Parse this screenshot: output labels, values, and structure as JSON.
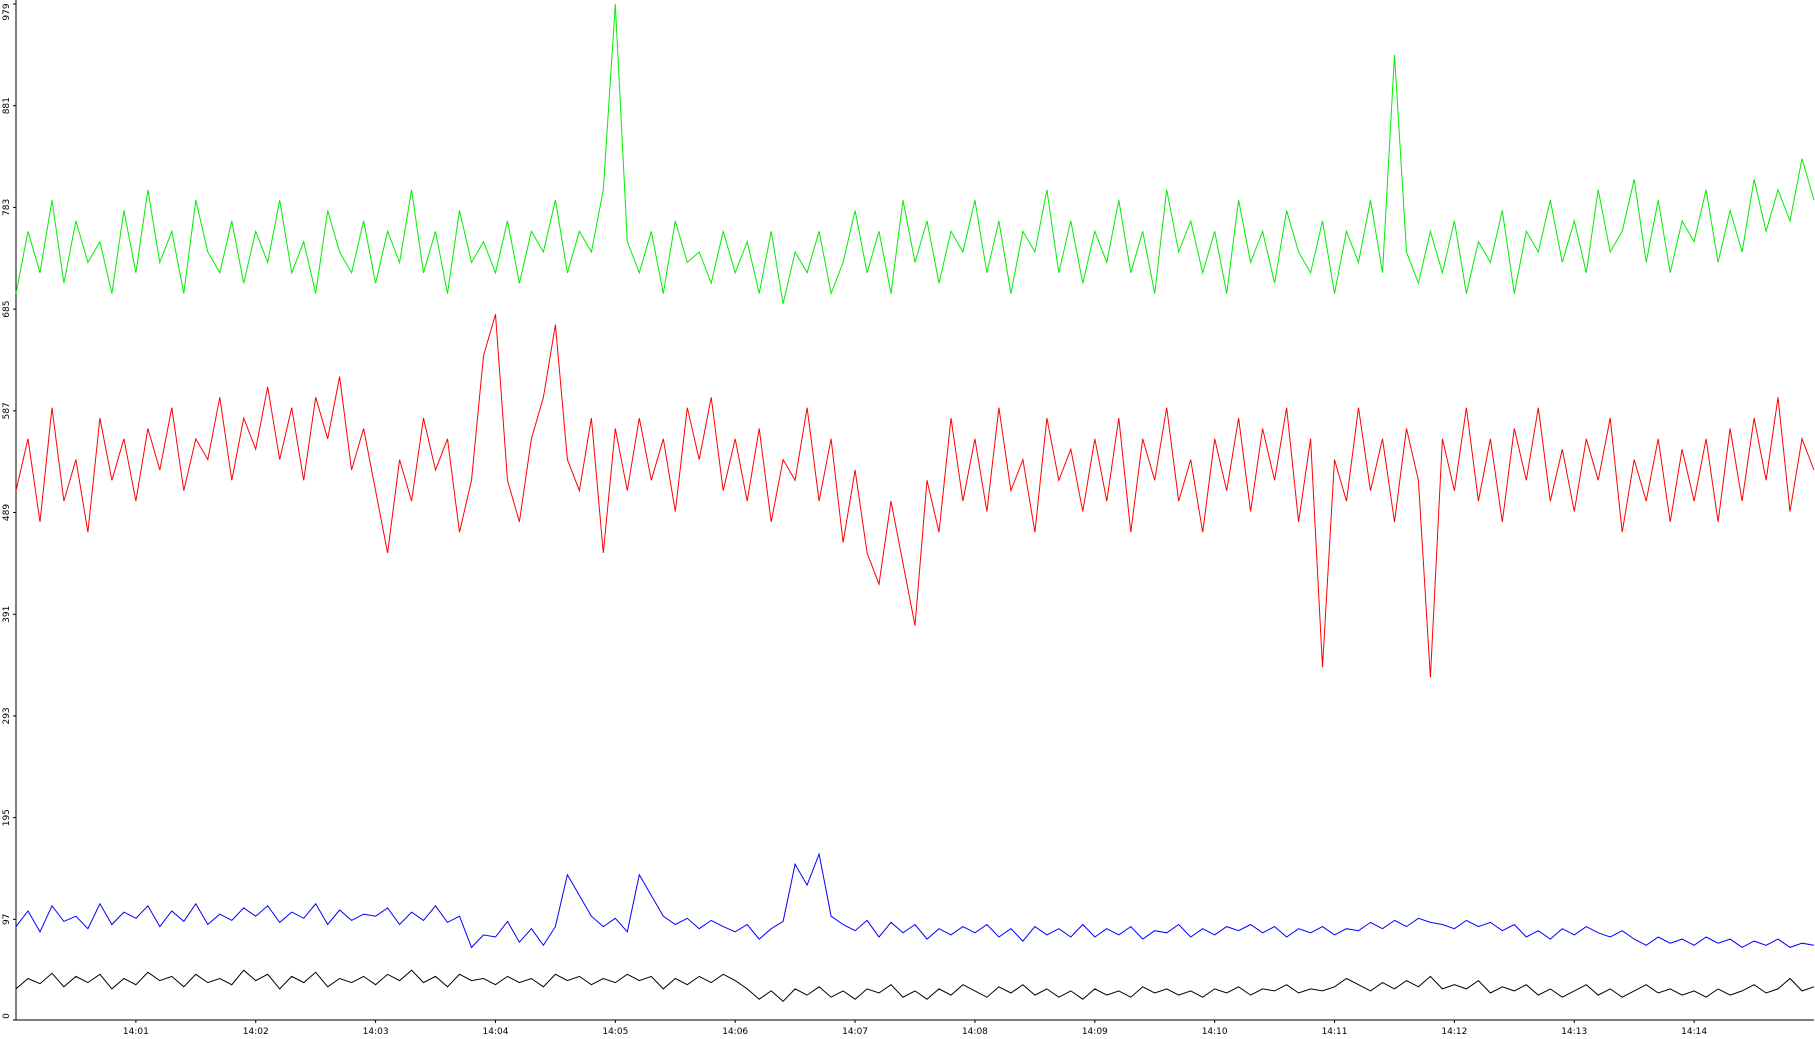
{
  "chart_data": {
    "type": "line",
    "categories": [
      null,
      null,
      null,
      null,
      null,
      null,
      null,
      null,
      null,
      null,
      "14:01",
      null,
      null,
      null,
      null,
      null,
      null,
      null,
      null,
      null,
      "14:02",
      null,
      null,
      null,
      null,
      null,
      null,
      null,
      null,
      null,
      "14:03",
      null,
      null,
      null,
      null,
      null,
      null,
      null,
      null,
      null,
      "14:04",
      null,
      null,
      null,
      null,
      null,
      null,
      null,
      null,
      null,
      "14:05",
      null,
      null,
      null,
      null,
      null,
      null,
      null,
      null,
      null,
      "14:06",
      null,
      null,
      null,
      null,
      null,
      null,
      null,
      null,
      null,
      "14:07",
      null,
      null,
      null,
      null,
      null,
      null,
      null,
      null,
      null,
      "14:08",
      null,
      null,
      null,
      null,
      null,
      null,
      null,
      null,
      null,
      "14:09",
      null,
      null,
      null,
      null,
      null,
      null,
      null,
      null,
      null,
      "14:10",
      null,
      null,
      null,
      null,
      null,
      null,
      null,
      null,
      null,
      "14:11",
      null,
      null,
      null,
      null,
      null,
      null,
      null,
      null,
      null,
      "14:12",
      null,
      null,
      null,
      null,
      null,
      null,
      null,
      null,
      null,
      "14:13",
      null,
      null,
      null,
      null,
      null,
      null,
      null,
      null,
      null,
      "14:14",
      null,
      null,
      null,
      null,
      null,
      null,
      null,
      null,
      null,
      null
    ],
    "series": [
      {
        "color": "#00ee00",
        "values": [
          700,
          760,
          720,
          790,
          710,
          770,
          730,
          750,
          700,
          780,
          720,
          800,
          730,
          760,
          700,
          790,
          740,
          720,
          770,
          710,
          760,
          730,
          790,
          720,
          750,
          700,
          780,
          740,
          720,
          770,
          710,
          760,
          730,
          800,
          720,
          760,
          700,
          780,
          730,
          750,
          720,
          770,
          710,
          760,
          740,
          790,
          720,
          760,
          740,
          800,
          979,
          750,
          720,
          760,
          700,
          770,
          730,
          740,
          710,
          760,
          720,
          750,
          700,
          760,
          690,
          740,
          720,
          760,
          700,
          730,
          780,
          720,
          760,
          700,
          790,
          730,
          770,
          710,
          760,
          740,
          790,
          720,
          770,
          700,
          760,
          740,
          800,
          720,
          770,
          710,
          760,
          730,
          790,
          720,
          760,
          700,
          800,
          740,
          770,
          720,
          760,
          700,
          790,
          730,
          760,
          710,
          780,
          740,
          720,
          770,
          700,
          760,
          730,
          790,
          720,
          930,
          740,
          710,
          760,
          720,
          770,
          700,
          750,
          730,
          780,
          700,
          760,
          740,
          790,
          730,
          770,
          720,
          800,
          740,
          760,
          810,
          730,
          790,
          720,
          770,
          750,
          800,
          730,
          780,
          740,
          810,
          760,
          800,
          770,
          830,
          790
        ]
      },
      {
        "color": "#ff0000",
        "values": [
          510,
          560,
          480,
          590,
          500,
          540,
          470,
          580,
          520,
          560,
          500,
          570,
          530,
          590,
          510,
          560,
          540,
          600,
          520,
          580,
          550,
          610,
          540,
          590,
          520,
          600,
          560,
          620,
          530,
          570,
          510,
          450,
          540,
          500,
          580,
          530,
          560,
          470,
          520,
          640,
          680,
          520,
          480,
          560,
          600,
          670,
          540,
          510,
          580,
          450,
          570,
          510,
          580,
          520,
          560,
          490,
          590,
          540,
          600,
          510,
          560,
          500,
          570,
          480,
          540,
          520,
          590,
          500,
          560,
          460,
          530,
          450,
          420,
          500,
          440,
          380,
          520,
          470,
          580,
          500,
          560,
          490,
          590,
          510,
          540,
          470,
          580,
          520,
          550,
          490,
          560,
          500,
          580,
          470,
          560,
          520,
          590,
          500,
          540,
          470,
          560,
          510,
          580,
          490,
          570,
          520,
          590,
          480,
          560,
          340,
          540,
          500,
          590,
          510,
          560,
          480,
          570,
          520,
          330,
          560,
          510,
          590,
          500,
          560,
          480,
          570,
          520,
          590,
          500,
          550,
          490,
          560,
          520,
          580,
          470,
          540,
          500,
          560,
          480,
          550,
          500,
          560,
          480,
          570,
          500,
          580,
          520,
          600,
          490,
          560,
          530
        ]
      },
      {
        "color": "#0000ff",
        "values": [
          90,
          105,
          85,
          110,
          95,
          100,
          88,
          112,
          92,
          104,
          98,
          110,
          90,
          105,
          95,
          112,
          92,
          102,
          96,
          108,
          100,
          110,
          94,
          104,
          98,
          112,
          92,
          106,
          96,
          102,
          100,
          108,
          92,
          104,
          96,
          110,
          94,
          100,
          70,
          82,
          80,
          95,
          75,
          88,
          72,
          90,
          140,
          120,
          100,
          90,
          98,
          85,
          140,
          120,
          100,
          92,
          98,
          88,
          96,
          90,
          85,
          92,
          78,
          88,
          95,
          150,
          130,
          160,
          100,
          92,
          86,
          96,
          80,
          94,
          84,
          92,
          78,
          88,
          82,
          90,
          84,
          92,
          80,
          88,
          76,
          90,
          82,
          88,
          80,
          92,
          80,
          88,
          82,
          90,
          78,
          86,
          84,
          92,
          80,
          88,
          82,
          90,
          86,
          92,
          84,
          90,
          80,
          88,
          84,
          90,
          82,
          88,
          86,
          94,
          88,
          96,
          90,
          98,
          94,
          92,
          88,
          96,
          90,
          94,
          86,
          92,
          80,
          86,
          78,
          88,
          82,
          90,
          84,
          80,
          86,
          78,
          72,
          80,
          74,
          78,
          72,
          80,
          74,
          78,
          70,
          76,
          72,
          78,
          70,
          74,
          72
        ]
      },
      {
        "color": "#000000",
        "values": [
          30,
          40,
          35,
          45,
          32,
          42,
          36,
          44,
          30,
          40,
          34,
          46,
          38,
          42,
          32,
          44,
          36,
          40,
          34,
          48,
          38,
          44,
          30,
          42,
          36,
          46,
          32,
          40,
          36,
          42,
          34,
          44,
          38,
          48,
          36,
          42,
          32,
          44,
          38,
          40,
          34,
          42,
          36,
          40,
          32,
          44,
          38,
          42,
          34,
          40,
          36,
          44,
          38,
          42,
          30,
          40,
          34,
          42,
          36,
          44,
          38,
          30,
          20,
          28,
          18,
          30,
          24,
          32,
          22,
          28,
          20,
          30,
          26,
          34,
          22,
          28,
          20,
          30,
          24,
          34,
          28,
          22,
          32,
          26,
          34,
          24,
          30,
          22,
          28,
          20,
          30,
          24,
          28,
          22,
          32,
          26,
          30,
          24,
          28,
          22,
          30,
          26,
          32,
          24,
          30,
          28,
          34,
          26,
          30,
          28,
          32,
          40,
          34,
          28,
          36,
          30,
          38,
          32,
          42,
          30,
          34,
          30,
          38,
          26,
          32,
          28,
          34,
          24,
          30,
          22,
          28,
          34,
          24,
          30,
          22,
          28,
          34,
          26,
          30,
          24,
          28,
          22,
          30,
          24,
          28,
          34,
          26,
          30,
          40,
          28,
          32
        ]
      }
    ],
    "ylim": [
      0,
      979
    ],
    "yticks": [
      0,
      97,
      195,
      293,
      391,
      489,
      587,
      685,
      783,
      881,
      979
    ]
  }
}
